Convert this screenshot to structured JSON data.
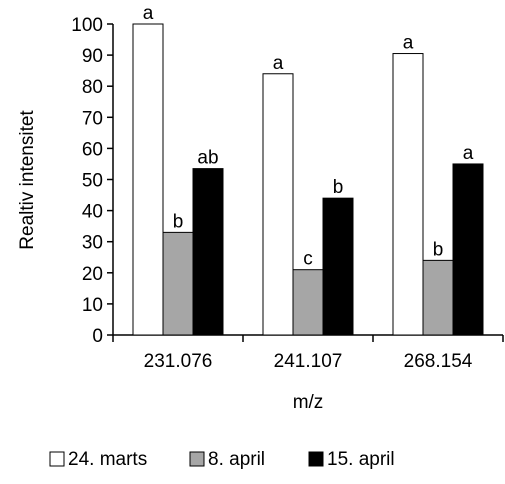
{
  "chart_data": {
    "type": "bar",
    "title": "",
    "xlabel": "m/z",
    "ylabel": "Realtiv intensitet",
    "ylim": [
      0,
      100
    ],
    "yticks": [
      0,
      10,
      20,
      30,
      40,
      50,
      60,
      70,
      80,
      90,
      100
    ],
    "grid": false,
    "legend_position": "bottom",
    "categories": [
      "231.076",
      "241.107",
      "268.154"
    ],
    "series": [
      {
        "name": "24. marts",
        "color": "#ffffff",
        "values": [
          100,
          84,
          90.5
        ],
        "labels": [
          "a",
          "a",
          "a"
        ]
      },
      {
        "name": "8. april",
        "color": "#a6a6a6",
        "values": [
          33,
          21,
          24
        ],
        "labels": [
          "b",
          "c",
          "b"
        ]
      },
      {
        "name": "15. april",
        "color": "#000000",
        "values": [
          53.5,
          44,
          55
        ],
        "labels": [
          "ab",
          "b",
          "a"
        ]
      }
    ]
  }
}
